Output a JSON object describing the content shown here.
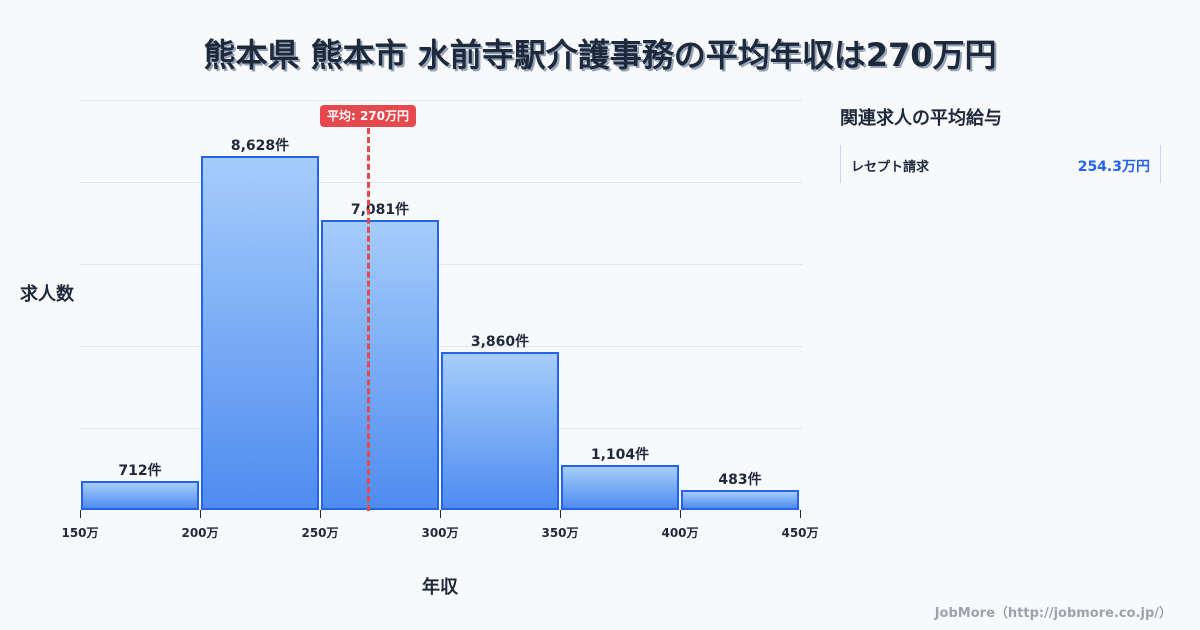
{
  "title": "熊本県 熊本市 水前寺駅介護事務の平均年収は270万円",
  "ylabel": "求人数",
  "xlabel": "年収",
  "average_badge": "平均: 270万円",
  "side_panel": {
    "title": "関連求人の平均給与",
    "items": [
      {
        "name": "レセプト請求",
        "value": "254.3万円"
      }
    ]
  },
  "footer": "JobMore（http://jobmore.co.jp/）",
  "colors": {
    "bar_top": "#a5cdfb",
    "bar_bottom": "#4f8cf0",
    "bar_border": "#2563eb",
    "average_line": "#e5484d",
    "side_value": "#2563eb"
  },
  "chart_data": {
    "type": "bar",
    "title": "熊本県 熊本市 水前寺駅介護事務の平均年収は270万円",
    "xlabel": "年収",
    "ylabel": "求人数",
    "categories": [
      "150万-200万",
      "200万-250万",
      "250万-300万",
      "300万-350万",
      "350万-400万",
      "400万-450万"
    ],
    "bins": [
      [
        150,
        200
      ],
      [
        200,
        250
      ],
      [
        250,
        300
      ],
      [
        300,
        350
      ],
      [
        350,
        400
      ],
      [
        400,
        450
      ]
    ],
    "values": [
      712,
      8628,
      7081,
      3860,
      1104,
      483
    ],
    "value_labels": [
      "712件",
      "8,628件",
      "7,081件",
      "3,860件",
      "1,104件",
      "483件"
    ],
    "x_ticks": [
      "150万",
      "200万",
      "250万",
      "300万",
      "350万",
      "400万",
      "450万"
    ],
    "xlim": [
      150,
      450
    ],
    "ylim": [
      0,
      10000
    ],
    "grid": true,
    "average": {
      "value": 270,
      "label": "平均: 270万円"
    },
    "legend": "none"
  }
}
